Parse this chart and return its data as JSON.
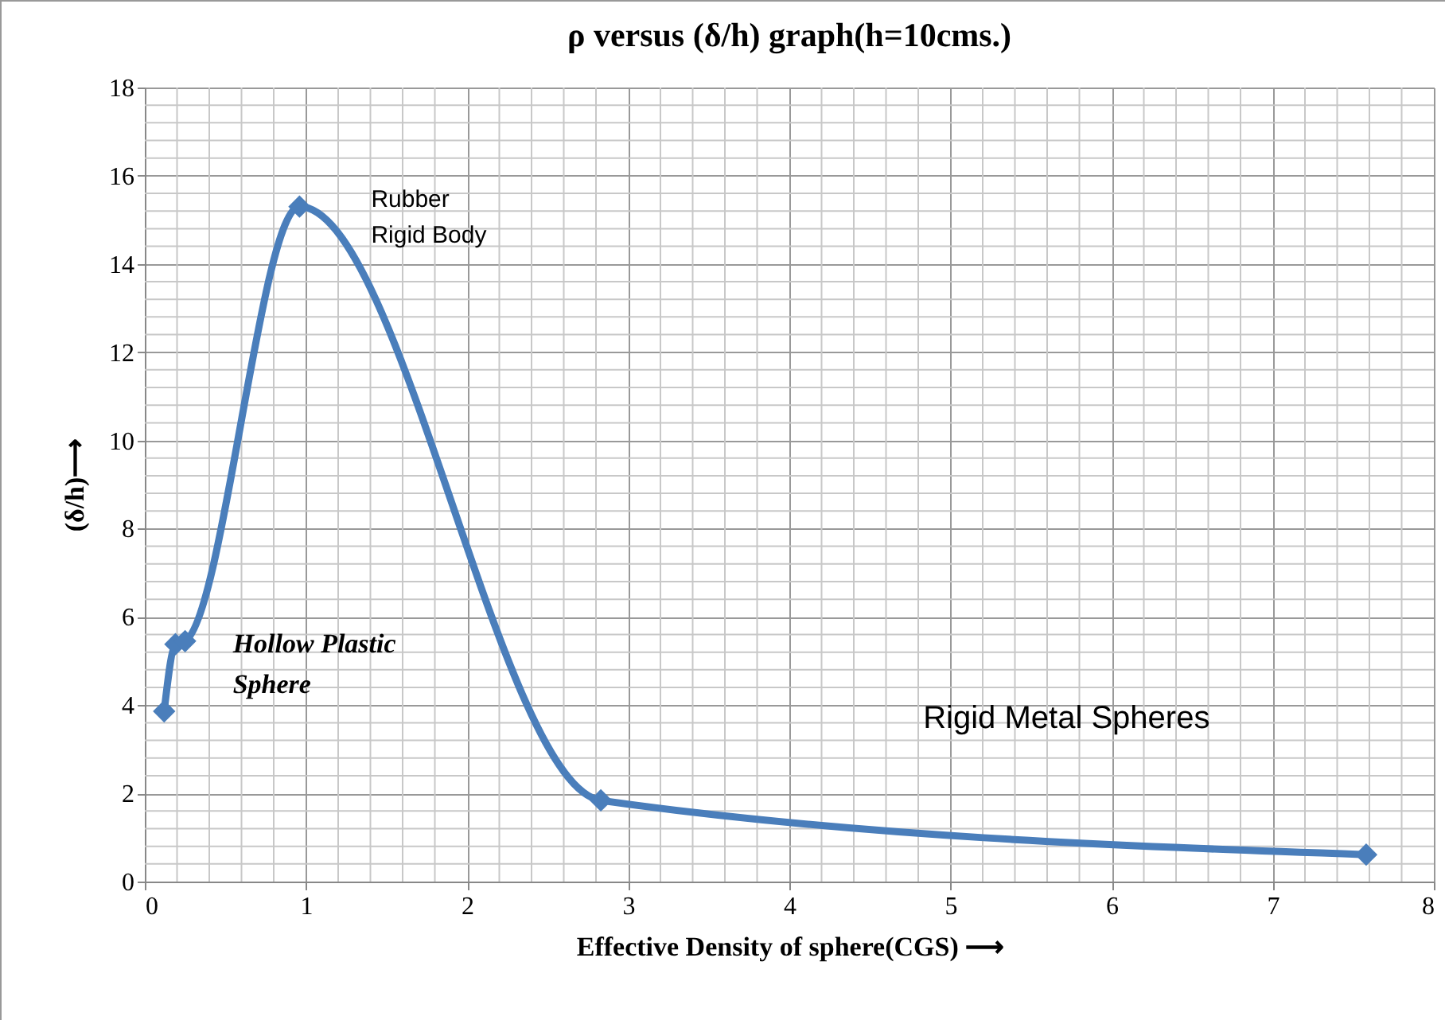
{
  "chart_data": {
    "type": "line",
    "title": "ρ versus (δ/h) graph(h=10cms.)",
    "xlabel": "Effective Density of sphere(CGS) ⟶",
    "ylabel": "(δ/h)⟶",
    "x": [
      0.12,
      0.19,
      0.25,
      0.96,
      2.83,
      7.58
    ],
    "series": [
      {
        "color": "#4a7ebb",
        "values": [
          3.86,
          5.38,
          5.45,
          15.3,
          1.84,
          0.61
        ]
      }
    ],
    "xlim": [
      0,
      8
    ],
    "xticks": [
      0,
      1,
      2,
      3,
      4,
      5,
      6,
      7,
      8
    ],
    "ylim": [
      0,
      18
    ],
    "yticks": [
      0,
      2,
      4,
      6,
      8,
      10,
      12,
      14,
      16,
      18
    ],
    "grid": true,
    "marker": "diamond",
    "line_style": "solid",
    "annotations": [
      {
        "text": "Rubber\nRigid Body",
        "x": 0.96,
        "y": 15.3
      },
      {
        "text": "Hollow Plastic\nSphere",
        "x": 0.25,
        "y": 5.45
      },
      "Rigid Metal Spheres"
    ]
  }
}
